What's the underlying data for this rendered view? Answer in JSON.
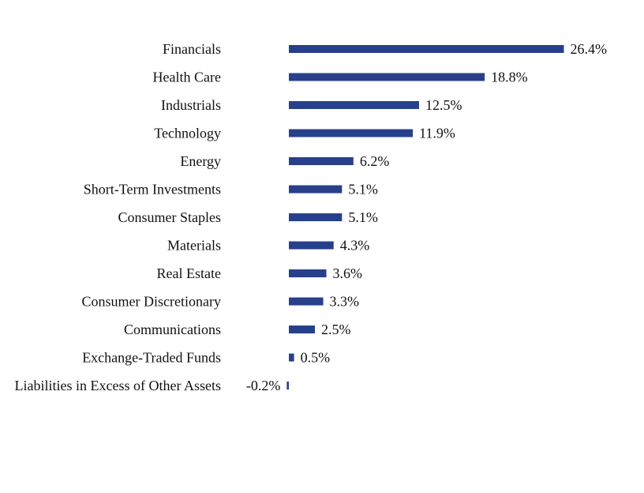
{
  "chart_data": {
    "type": "bar",
    "orientation": "horizontal",
    "categories": [
      "Financials",
      "Health Care",
      "Industrials",
      "Technology",
      "Energy",
      "Short-Term Investments",
      "Consumer Staples",
      "Materials",
      "Real Estate",
      "Consumer Discretionary",
      "Communications",
      "Exchange-Traded Funds",
      "Liabilities in Excess of Other Assets"
    ],
    "values": [
      26.4,
      18.8,
      12.5,
      11.9,
      6.2,
      5.1,
      5.1,
      4.3,
      3.6,
      3.3,
      2.5,
      0.5,
      -0.2
    ],
    "value_labels": [
      "26.4%",
      "18.8%",
      "12.5%",
      "11.9%",
      "6.2%",
      "5.1%",
      "5.1%",
      "4.3%",
      "3.6%",
      "3.3%",
      "2.5%",
      "0.5%",
      "-0.2%"
    ],
    "title": "",
    "xlabel": "",
    "ylabel": "",
    "xlim": [
      -0.2,
      26.4
    ],
    "grid": false,
    "legend": "none",
    "bar_color": "#27408B"
  }
}
